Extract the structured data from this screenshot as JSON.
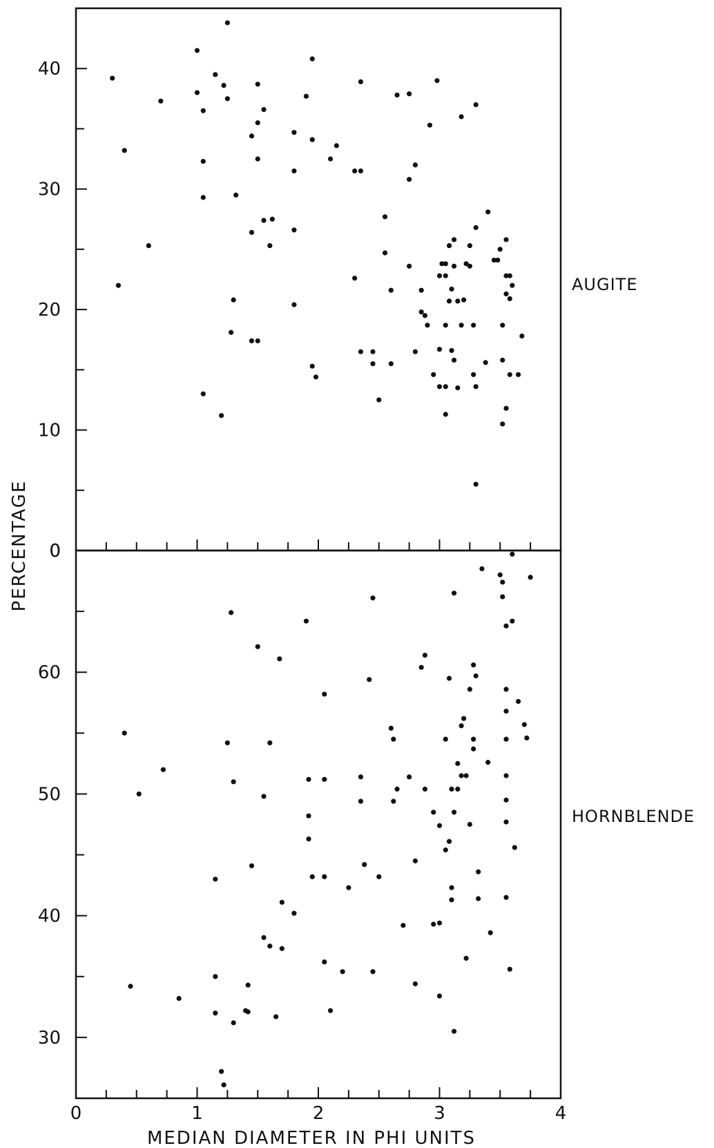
{
  "chart_data": {
    "type": "scatter",
    "xlabel": "MEDIAN DIAMETER IN PHI UNITS",
    "ylabel": "PERCENTAGE",
    "xlim": [
      0,
      4
    ],
    "x_ticks": [
      "0",
      "1",
      "2",
      "3",
      "4"
    ],
    "grid": false,
    "panels": [
      {
        "label": "AUGITE",
        "ylim": [
          0,
          45
        ],
        "y_ticks": [
          "0",
          "10",
          "20",
          "30",
          "40"
        ],
        "points": [
          [
            0.3,
            39.2
          ],
          [
            0.4,
            33.2
          ],
          [
            0.35,
            22
          ],
          [
            0.6,
            25.3
          ],
          [
            0.7,
            37.3
          ],
          [
            1.0,
            41.5
          ],
          [
            1.0,
            38
          ],
          [
            1.05,
            36.5
          ],
          [
            1.05,
            32.3
          ],
          [
            1.05,
            29.3
          ],
          [
            1.05,
            13
          ],
          [
            1.15,
            39.5
          ],
          [
            1.22,
            38.6
          ],
          [
            1.25,
            37.5
          ],
          [
            1.25,
            43.8
          ],
          [
            1.3,
            20.8
          ],
          [
            1.28,
            18.1
          ],
          [
            1.2,
            11.2
          ],
          [
            1.32,
            29.5
          ],
          [
            1.45,
            34.4
          ],
          [
            1.5,
            35.5
          ],
          [
            1.55,
            36.6
          ],
          [
            1.5,
            38.7
          ],
          [
            1.5,
            32.5
          ],
          [
            1.45,
            26.4
          ],
          [
            1.55,
            27.4
          ],
          [
            1.62,
            27.5
          ],
          [
            1.6,
            25.3
          ],
          [
            1.45,
            17.4
          ],
          [
            1.5,
            17.4
          ],
          [
            1.8,
            34.7
          ],
          [
            1.8,
            31.5
          ],
          [
            1.8,
            26.6
          ],
          [
            1.8,
            20.4
          ],
          [
            1.9,
            37.7
          ],
          [
            1.95,
            34.1
          ],
          [
            1.95,
            40.8
          ],
          [
            1.95,
            15.3
          ],
          [
            1.98,
            14.4
          ],
          [
            2.1,
            32.5
          ],
          [
            2.15,
            33.6
          ],
          [
            2.3,
            31.5
          ],
          [
            2.35,
            31.5
          ],
          [
            2.35,
            38.9
          ],
          [
            2.3,
            22.6
          ],
          [
            2.35,
            16.5
          ],
          [
            2.45,
            16.5
          ],
          [
            2.45,
            15.5
          ],
          [
            2.5,
            12.5
          ],
          [
            2.55,
            27.7
          ],
          [
            2.55,
            24.7
          ],
          [
            2.6,
            21.6
          ],
          [
            2.6,
            15.5
          ],
          [
            2.65,
            37.8
          ],
          [
            2.75,
            37.9
          ],
          [
            2.75,
            30.8
          ],
          [
            2.75,
            23.6
          ],
          [
            2.8,
            32
          ],
          [
            2.8,
            16.5
          ],
          [
            2.85,
            21.6
          ],
          [
            2.85,
            19.8
          ],
          [
            2.88,
            19.5
          ],
          [
            2.9,
            18.7
          ],
          [
            2.92,
            35.3
          ],
          [
            2.95,
            14.6
          ],
          [
            2.98,
            39
          ],
          [
            3.0,
            22.8
          ],
          [
            3.0,
            16.7
          ],
          [
            3.0,
            13.6
          ],
          [
            3.02,
            23.8
          ],
          [
            3.05,
            23.8
          ],
          [
            3.05,
            22.8
          ],
          [
            3.05,
            18.7
          ],
          [
            3.05,
            13.6
          ],
          [
            3.08,
            25.3
          ],
          [
            3.08,
            20.7
          ],
          [
            3.05,
            11.3
          ],
          [
            3.1,
            21.7
          ],
          [
            3.12,
            25.8
          ],
          [
            3.12,
            23.6
          ],
          [
            3.15,
            20.7
          ],
          [
            3.1,
            16.6
          ],
          [
            3.12,
            15.8
          ],
          [
            3.15,
            13.5
          ],
          [
            3.2,
            20.8
          ],
          [
            3.18,
            18.7
          ],
          [
            3.18,
            36
          ],
          [
            3.22,
            23.8
          ],
          [
            3.25,
            25.3
          ],
          [
            3.25,
            23.6
          ],
          [
            3.28,
            18.7
          ],
          [
            3.28,
            14.6
          ],
          [
            3.3,
            26.8
          ],
          [
            3.3,
            37
          ],
          [
            3.3,
            13.6
          ],
          [
            3.3,
            5.5
          ],
          [
            3.4,
            28.1
          ],
          [
            3.38,
            15.6
          ],
          [
            3.45,
            24.1
          ],
          [
            3.48,
            24.1
          ],
          [
            3.5,
            25
          ],
          [
            3.55,
            25.8
          ],
          [
            3.52,
            18.7
          ],
          [
            3.52,
            15.8
          ],
          [
            3.55,
            22.8
          ],
          [
            3.58,
            22.8
          ],
          [
            3.55,
            21.3
          ],
          [
            3.58,
            20.9
          ],
          [
            3.58,
            14.6
          ],
          [
            3.55,
            11.8
          ],
          [
            3.52,
            10.5
          ],
          [
            3.6,
            22
          ],
          [
            3.65,
            14.6
          ],
          [
            3.68,
            17.8
          ]
        ]
      },
      {
        "label": "HORNBLENDE",
        "ylim": [
          25,
          70
        ],
        "y_ticks": [
          "30",
          "40",
          "50",
          "60"
        ],
        "points": [
          [
            0.4,
            55
          ],
          [
            0.45,
            34.2
          ],
          [
            0.52,
            50
          ],
          [
            0.72,
            52
          ],
          [
            0.85,
            33.2
          ],
          [
            1.15,
            43
          ],
          [
            1.15,
            35
          ],
          [
            1.15,
            32
          ],
          [
            1.2,
            27.2
          ],
          [
            1.22,
            26.1
          ],
          [
            1.25,
            54.2
          ],
          [
            1.28,
            64.9
          ],
          [
            1.3,
            51
          ],
          [
            1.3,
            31.2
          ],
          [
            1.4,
            32.2
          ],
          [
            1.42,
            32.1
          ],
          [
            1.42,
            34.3
          ],
          [
            1.45,
            44.1
          ],
          [
            1.5,
            62.1
          ],
          [
            1.55,
            49.8
          ],
          [
            1.55,
            38.2
          ],
          [
            1.6,
            54.2
          ],
          [
            1.6,
            37.5
          ],
          [
            1.65,
            31.7
          ],
          [
            1.68,
            61.1
          ],
          [
            1.7,
            41.1
          ],
          [
            1.7,
            37.3
          ],
          [
            1.8,
            40.2
          ],
          [
            1.9,
            64.2
          ],
          [
            1.92,
            48.2
          ],
          [
            1.92,
            46.3
          ],
          [
            1.92,
            51.2
          ],
          [
            1.95,
            43.2
          ],
          [
            2.05,
            58.2
          ],
          [
            2.05,
            51.2
          ],
          [
            2.05,
            43.2
          ],
          [
            2.05,
            36.2
          ],
          [
            2.1,
            32.2
          ],
          [
            2.2,
            35.4
          ],
          [
            2.25,
            42.3
          ],
          [
            2.35,
            51.4
          ],
          [
            2.35,
            49.4
          ],
          [
            2.38,
            44.2
          ],
          [
            2.42,
            59.4
          ],
          [
            2.45,
            66.1
          ],
          [
            2.45,
            35.4
          ],
          [
            2.5,
            43.2
          ],
          [
            2.6,
            55.4
          ],
          [
            2.62,
            54.5
          ],
          [
            2.62,
            49.4
          ],
          [
            2.65,
            50.4
          ],
          [
            2.7,
            39.2
          ],
          [
            2.75,
            51.4
          ],
          [
            2.8,
            44.5
          ],
          [
            2.8,
            34.4
          ],
          [
            2.85,
            60.4
          ],
          [
            2.88,
            61.4
          ],
          [
            2.88,
            50.4
          ],
          [
            2.95,
            48.5
          ],
          [
            2.95,
            39.3
          ],
          [
            3.0,
            47.4
          ],
          [
            3.0,
            39.4
          ],
          [
            3.0,
            33.4
          ],
          [
            3.05,
            54.5
          ],
          [
            3.05,
            45.4
          ],
          [
            3.08,
            59.5
          ],
          [
            3.08,
            46.1
          ],
          [
            3.1,
            42.3
          ],
          [
            3.1,
            41.3
          ],
          [
            3.1,
            50.4
          ],
          [
            3.12,
            48.5
          ],
          [
            3.12,
            30.5
          ],
          [
            3.12,
            66.5
          ],
          [
            3.15,
            52.5
          ],
          [
            3.15,
            50.4
          ],
          [
            3.18,
            55.6
          ],
          [
            3.18,
            51.5
          ],
          [
            3.2,
            56.2
          ],
          [
            3.22,
            51.5
          ],
          [
            3.22,
            36.5
          ],
          [
            3.25,
            58.6
          ],
          [
            3.25,
            47.5
          ],
          [
            3.28,
            60.6
          ],
          [
            3.28,
            54.5
          ],
          [
            3.28,
            53.7
          ],
          [
            3.3,
            59.7
          ],
          [
            3.32,
            41.4
          ],
          [
            3.32,
            43.6
          ],
          [
            3.35,
            68.5
          ],
          [
            3.4,
            52.6
          ],
          [
            3.42,
            38.6
          ],
          [
            3.5,
            68
          ],
          [
            3.52,
            67.4
          ],
          [
            3.52,
            66.2
          ],
          [
            3.55,
            63.8
          ],
          [
            3.55,
            58.6
          ],
          [
            3.55,
            56.8
          ],
          [
            3.55,
            54.5
          ],
          [
            3.55,
            51.5
          ],
          [
            3.55,
            49.5
          ],
          [
            3.55,
            47.7
          ],
          [
            3.55,
            41.5
          ],
          [
            3.58,
            35.6
          ],
          [
            3.6,
            69.7
          ],
          [
            3.6,
            64.2
          ],
          [
            3.62,
            45.6
          ],
          [
            3.65,
            57.6
          ],
          [
            3.7,
            55.7
          ],
          [
            3.72,
            54.6
          ],
          [
            3.75,
            67.8
          ]
        ]
      }
    ]
  }
}
